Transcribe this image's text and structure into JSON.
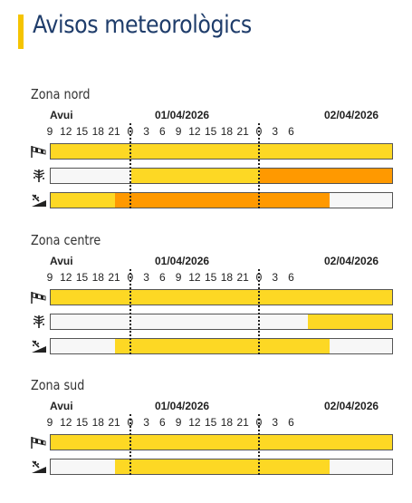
{
  "page": {
    "title": "Avisos meteorològics"
  },
  "legend_colors": {
    "yellow": "#fdd824",
    "orange": "#ff9900",
    "none": "#f7f7f7"
  },
  "timeline": {
    "day_labels": [
      "Avui",
      "01/04/2026",
      "02/04/2026"
    ],
    "hour_labels": [
      "9",
      "12",
      "15",
      "18",
      "21",
      "0",
      "3",
      "6",
      "9",
      "12",
      "15",
      "18",
      "21",
      "0",
      "3",
      "6"
    ]
  },
  "zones": [
    {
      "name": "Zona nord",
      "rows": [
        {
          "icon": "wind-sock-icon",
          "segments": [
            {
              "from_h": 0,
              "to_h": 64,
              "level": "yellow"
            }
          ]
        },
        {
          "icon": "snow-tree-icon",
          "segments": [
            {
              "from_h": 0,
              "to_h": 15,
              "level": "none"
            },
            {
              "from_h": 15,
              "to_h": 39,
              "level": "yellow"
            },
            {
              "from_h": 39,
              "to_h": 64,
              "level": "orange"
            }
          ]
        },
        {
          "icon": "avalanche-icon",
          "segments": [
            {
              "from_h": 0,
              "to_h": 12,
              "level": "yellow"
            },
            {
              "from_h": 12,
              "to_h": 52,
              "level": "orange"
            },
            {
              "from_h": 52,
              "to_h": 64,
              "level": "none"
            }
          ]
        }
      ]
    },
    {
      "name": "Zona centre",
      "rows": [
        {
          "icon": "wind-sock-icon",
          "segments": [
            {
              "from_h": 0,
              "to_h": 64,
              "level": "yellow"
            }
          ]
        },
        {
          "icon": "snow-tree-icon",
          "segments": [
            {
              "from_h": 0,
              "to_h": 48,
              "level": "none"
            },
            {
              "from_h": 48,
              "to_h": 64,
              "level": "yellow"
            }
          ]
        },
        {
          "icon": "avalanche-icon",
          "segments": [
            {
              "from_h": 0,
              "to_h": 12,
              "level": "none"
            },
            {
              "from_h": 12,
              "to_h": 52,
              "level": "yellow"
            },
            {
              "from_h": 52,
              "to_h": 64,
              "level": "none"
            }
          ]
        }
      ]
    },
    {
      "name": "Zona sud",
      "rows": [
        {
          "icon": "wind-sock-icon",
          "segments": [
            {
              "from_h": 0,
              "to_h": 64,
              "level": "yellow"
            }
          ]
        },
        {
          "icon": "avalanche-icon",
          "segments": [
            {
              "from_h": 0,
              "to_h": 12,
              "level": "none"
            },
            {
              "from_h": 12,
              "to_h": 52,
              "level": "yellow"
            },
            {
              "from_h": 52,
              "to_h": 64,
              "level": "none"
            }
          ]
        }
      ]
    }
  ]
}
